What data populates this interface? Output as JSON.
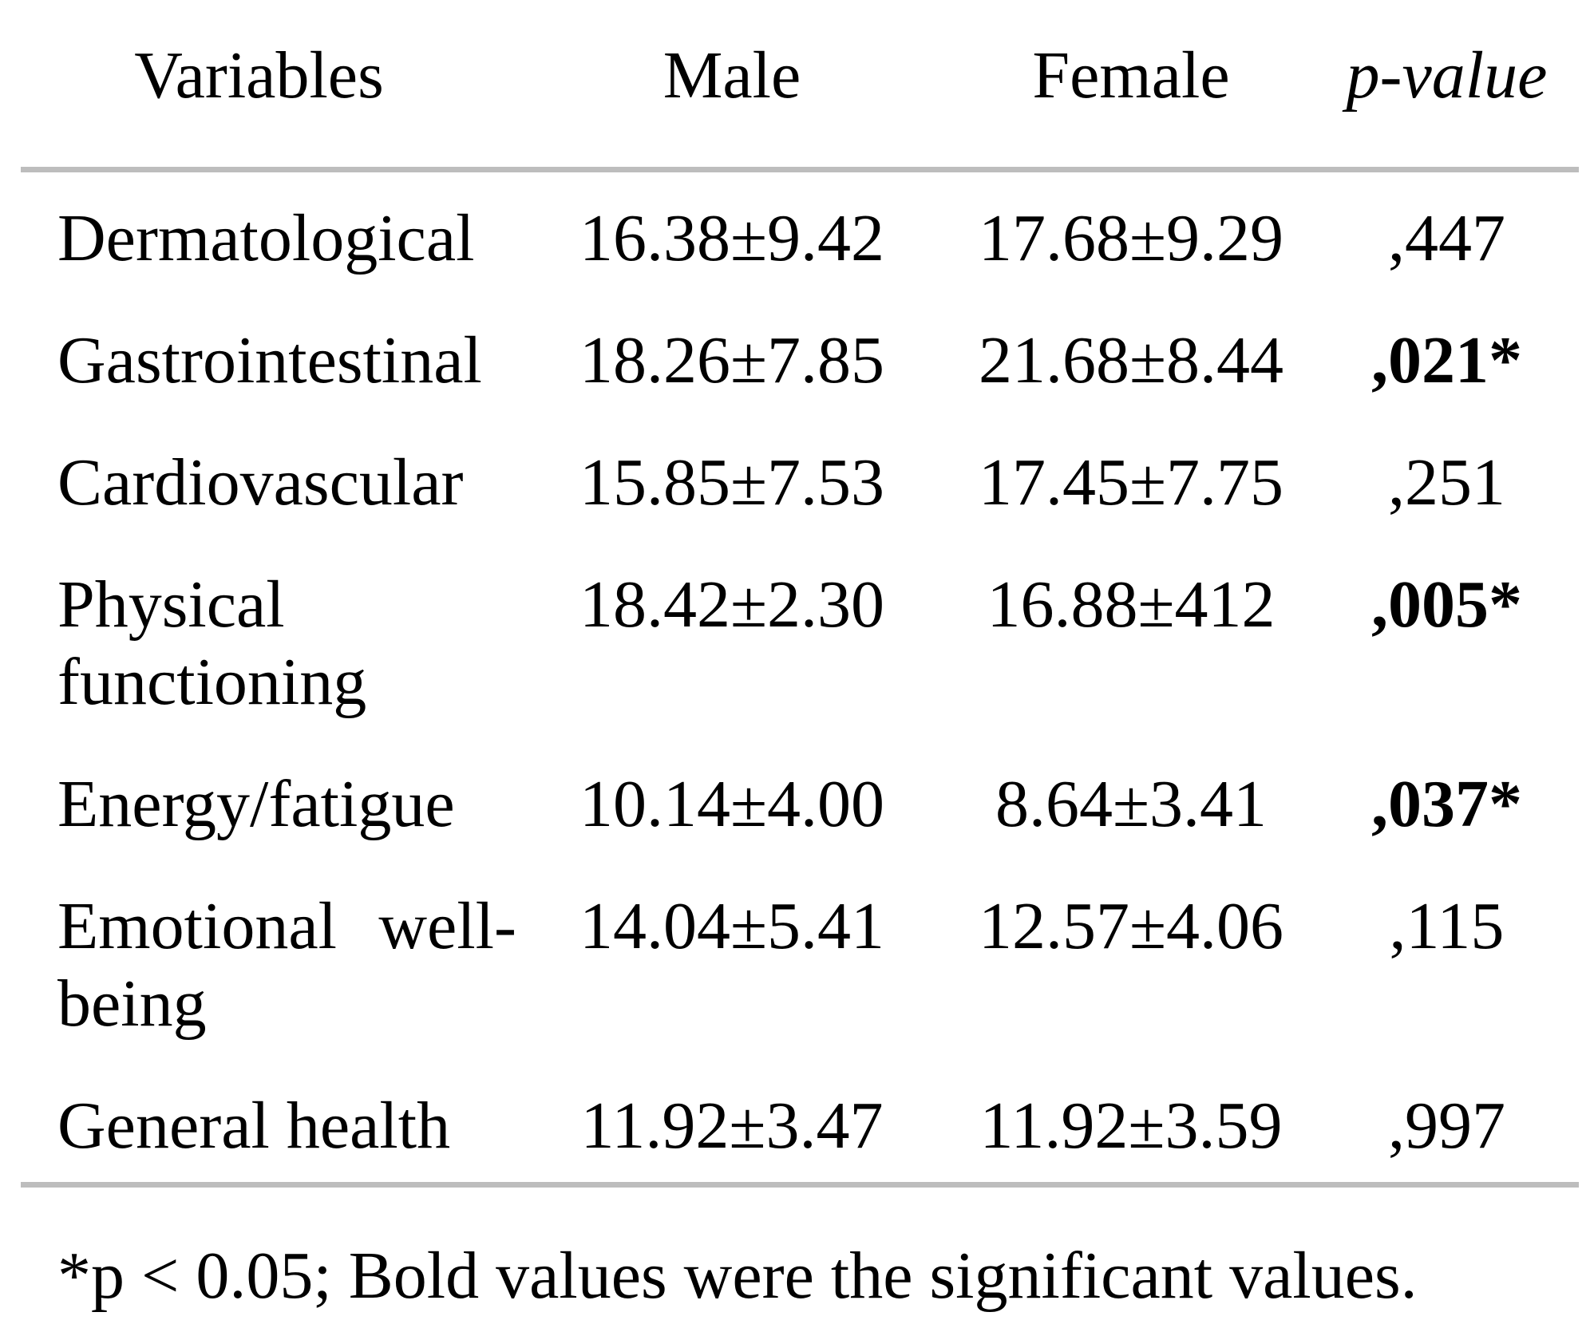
{
  "colors": {
    "background": "#ffffff",
    "text": "#000000",
    "rule": "#bdbdbd"
  },
  "table": {
    "columns": {
      "variables": "Variables",
      "male": "Male",
      "female": "Female",
      "p_value": "p-value"
    },
    "rows": [
      {
        "variable": "Dermatological",
        "male": "16.38±9.42",
        "female": "17.68±9.29",
        "p": ",447",
        "significant": false
      },
      {
        "variable": "Gastrointestinal",
        "male": "18.26±7.85",
        "female": "21.68±8.44",
        "p": ",021*",
        "significant": true
      },
      {
        "variable": "Cardiovascular",
        "male": "15.85±7.53",
        "female": "17.45±7.75",
        "p": ",251",
        "significant": false
      },
      {
        "variable": "Physical functioning",
        "male": "18.42±2.30",
        "female": "16.88±412",
        "p": ",005*",
        "significant": true
      },
      {
        "variable": "Energy/fatigue",
        "male": "10.14±4.00",
        "female": "8.64±3.41",
        "p": ",037*",
        "significant": true
      },
      {
        "variable": "Emotional well-being",
        "male": "14.04±5.41",
        "female": "12.57±4.06",
        "p": ",115",
        "significant": false
      },
      {
        "variable": "General health",
        "male": "11.92±3.47",
        "female": "11.92±3.59",
        "p": ",997",
        "significant": false
      }
    ]
  },
  "footnote": "*p < 0.05; Bold values were the significant values."
}
